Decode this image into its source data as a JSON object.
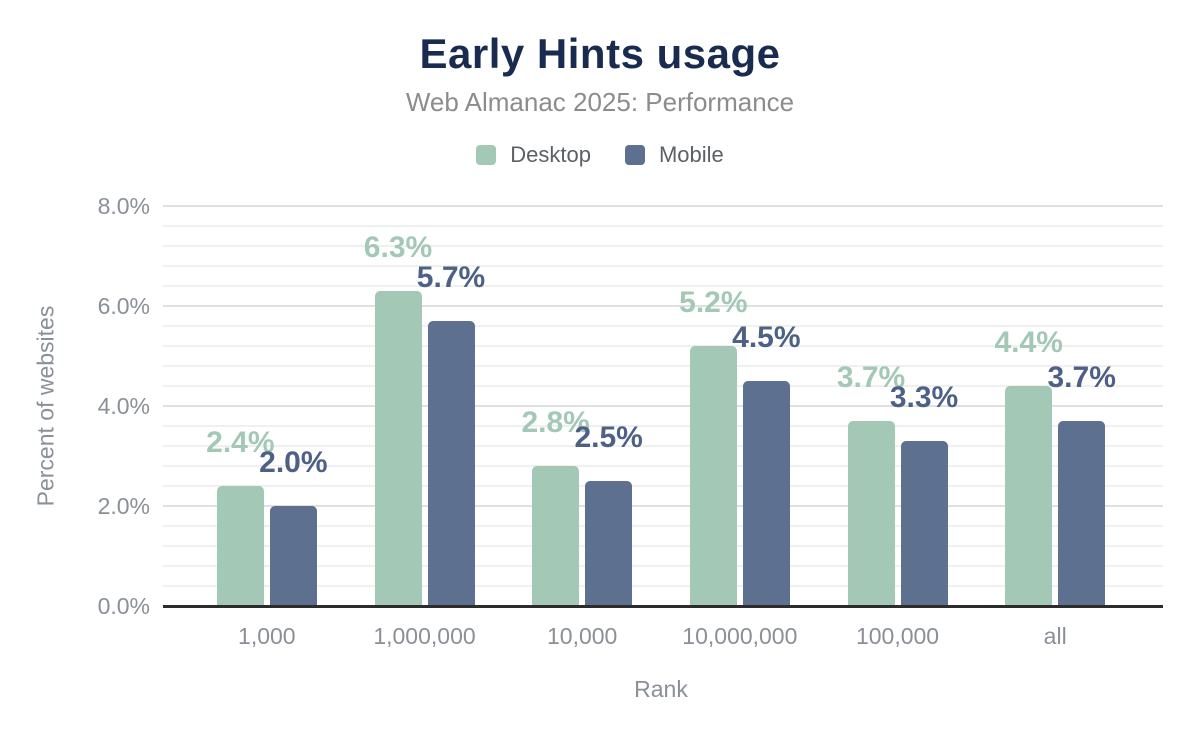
{
  "chart_data": {
    "type": "bar",
    "title": "Early Hints usage",
    "subtitle": "Web Almanac 2025: Performance",
    "categories": [
      "1,000",
      "1,000,000",
      "10,000",
      "10,000,000",
      "100,000",
      "all"
    ],
    "series": [
      {
        "name": "Desktop",
        "color": "#a3c8b6",
        "label_color": "#a3c8b6",
        "values": [
          2.4,
          6.3,
          2.8,
          5.2,
          3.7,
          4.4
        ],
        "value_labels": [
          "2.4%",
          "6.3%",
          "2.8%",
          "5.2%",
          "3.7%",
          "4.4%"
        ]
      },
      {
        "name": "Mobile",
        "color": "#5e7090",
        "label_color": "#4d6186",
        "values": [
          2.0,
          5.7,
          2.5,
          4.5,
          3.3,
          3.7
        ],
        "value_labels": [
          "2.0%",
          "5.7%",
          "2.5%",
          "4.5%",
          "3.3%",
          "3.7%"
        ]
      }
    ],
    "xlabel": "Rank",
    "ylabel": "Percent of websites",
    "ylim": [
      0,
      8
    ],
    "yticks": {
      "values": [
        0,
        2,
        4,
        6,
        8
      ],
      "labels": [
        "0.0%",
        "2.0%",
        "4.0%",
        "6.0%",
        "8.0%"
      ]
    },
    "grid": {
      "minor_step": 0.4,
      "major_step": 2,
      "major_color": "#e0e0e0",
      "minor_color": "#f0f0f0"
    },
    "legend_position": "top"
  },
  "colors": {
    "title": "#1a2b50",
    "subtitle": "#8c8c8c",
    "legend_text": "#5c6167",
    "tick_text": "#8a9097",
    "axis_line": "#2c2c2c",
    "background": "#ffffff"
  }
}
